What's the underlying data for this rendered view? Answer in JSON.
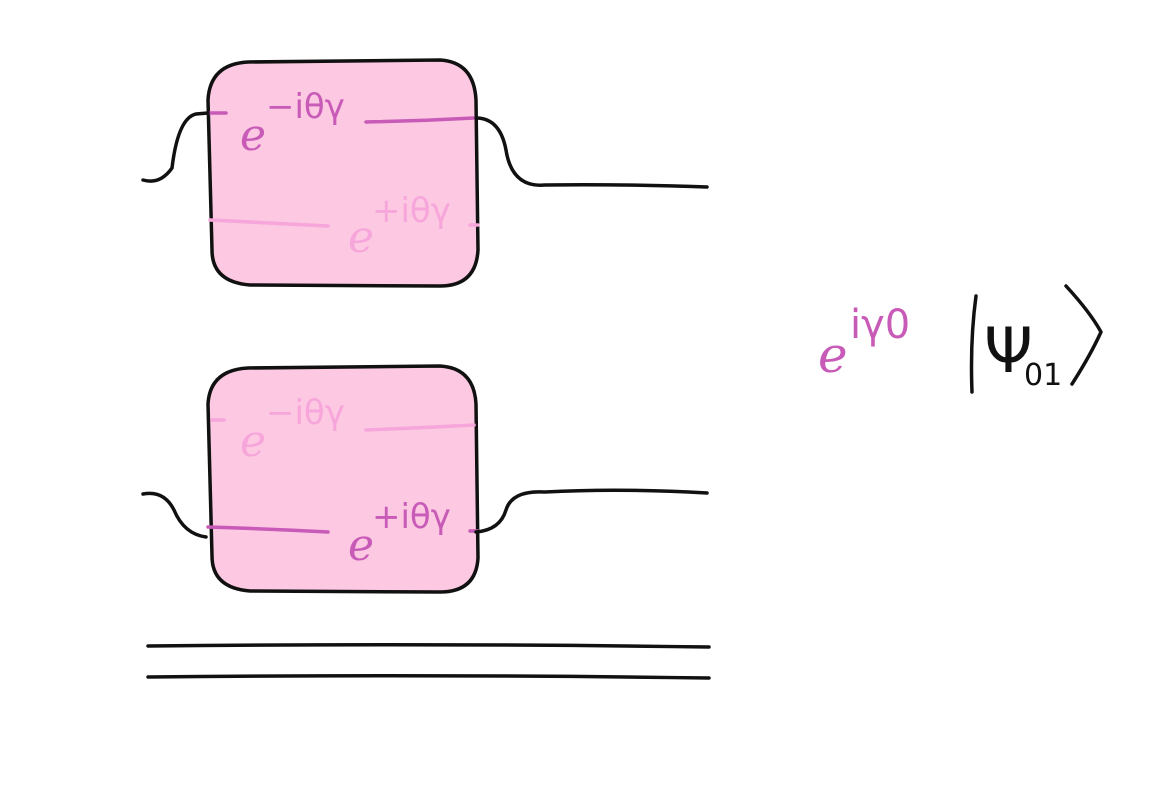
{
  "colors": {
    "background": "#ffffff",
    "box_fill": "#fdc8e1",
    "ink": "#111111",
    "magenta": "#c85ab8",
    "faint_magenta": "#f6a6da"
  },
  "gate_top": {
    "upper_label": {
      "base": "e",
      "exponent": "−iθγ"
    },
    "lower_label": {
      "base": "e",
      "exponent": "+iθγ"
    },
    "active": "upper"
  },
  "gate_bottom": {
    "upper_label": {
      "base": "e",
      "exponent": "−iθγ"
    },
    "lower_label": {
      "base": "e",
      "exponent": "+iθγ"
    },
    "active": "lower"
  },
  "result": {
    "phase": {
      "base": "e",
      "exponent": "iγ0"
    },
    "ket": {
      "symbol": "Ψ",
      "subscript": "01"
    }
  }
}
